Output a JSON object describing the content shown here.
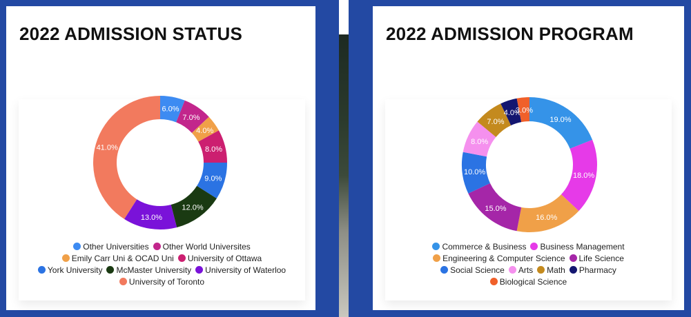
{
  "colors": {
    "background": "#2349a3",
    "panel": "#ffffff"
  },
  "charts": [
    {
      "title": "2022 ADMISSION STATUS",
      "legend_rows": [
        [
          0,
          1
        ],
        [
          2,
          3
        ],
        [
          4,
          5,
          6
        ],
        [
          7
        ]
      ],
      "chart_data": {
        "type": "pie",
        "donut": true,
        "slices": [
          {
            "label": "Other Universities",
            "value": 6.0,
            "display": "6.0%",
            "color": "#3d8bf2"
          },
          {
            "label": "Other World Universites",
            "value": 7.0,
            "display": "7.0%",
            "color": "#c2268c"
          },
          {
            "label": "Emily Carr Uni & OCAD Uni",
            "value": 4.0,
            "display": "4.0%",
            "color": "#f0a048"
          },
          {
            "label": "University of Ottawa",
            "value": 8.0,
            "display": "8.0%",
            "color": "#cc1f70"
          },
          {
            "label": "York University",
            "value": 9.0,
            "display": "9.0%",
            "color": "#2b73e3"
          },
          {
            "label": "McMaster University",
            "value": 12.0,
            "display": "12.0%",
            "color": "#1a3a12"
          },
          {
            "label": "University of Waterloo",
            "value": 13.0,
            "display": "13.0%",
            "color": "#7a12d9"
          },
          {
            "label": "University of Toronto",
            "value": 41.0,
            "display": "41.0%",
            "color": "#f27a5e"
          }
        ]
      }
    },
    {
      "title": "2022 ADMISSION PROGRAM",
      "legend_rows": [
        [
          0,
          1
        ],
        [
          2,
          3
        ],
        [
          4,
          5,
          6,
          7
        ],
        [
          8
        ]
      ],
      "chart_data": {
        "type": "pie",
        "donut": true,
        "slices": [
          {
            "label": "Commerce & Business",
            "value": 19.0,
            "display": "19.0%",
            "color": "#3593e8"
          },
          {
            "label": "Business Management",
            "value": 18.0,
            "display": "18.0%",
            "color": "#e63ae8"
          },
          {
            "label": "Engineering & Computer Science",
            "value": 16.0,
            "display": "16.0%",
            "color": "#f0a048"
          },
          {
            "label": "Life Science",
            "value": 15.0,
            "display": "15.0%",
            "color": "#a526a8"
          },
          {
            "label": "Social Science",
            "value": 10.0,
            "display": "10.0%",
            "color": "#2b73e3"
          },
          {
            "label": "Arts",
            "value": 8.0,
            "display": "8.0%",
            "color": "#f590ee"
          },
          {
            "label": "Math",
            "value": 7.0,
            "display": "7.0%",
            "color": "#c48a1e"
          },
          {
            "label": "Pharmacy",
            "value": 4.0,
            "display": "4.0%",
            "color": "#141670"
          },
          {
            "label": "Biological Science",
            "value": 3.0,
            "display": "3.0%",
            "color": "#f0602a"
          }
        ]
      }
    }
  ]
}
